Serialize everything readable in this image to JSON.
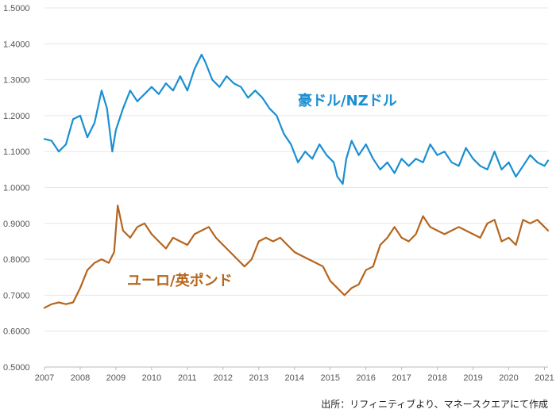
{
  "chart_data": {
    "type": "line",
    "title": "",
    "xlabel": "",
    "ylabel": "",
    "ylim": [
      0.5,
      1.5
    ],
    "xlim": [
      2007,
      2021.1
    ],
    "grid": "horizontal",
    "y_ticks": [
      "0.5000",
      "0.6000",
      "0.7000",
      "0.8000",
      "0.9000",
      "1.0000",
      "1.1000",
      "1.2000",
      "1.3000",
      "1.4000",
      "1.5000"
    ],
    "x_ticks": [
      "2007",
      "2008",
      "2009",
      "2010",
      "2011",
      "2012",
      "2013",
      "2014",
      "2015",
      "2016",
      "2017",
      "2018",
      "2019",
      "2020",
      "2021"
    ],
    "series": [
      {
        "name": "豪ドル/NZドル",
        "color": "#1a8fd1",
        "x": [
          2007.0,
          2007.2,
          2007.4,
          2007.6,
          2007.8,
          2008.0,
          2008.2,
          2008.4,
          2008.6,
          2008.75,
          2008.9,
          2009.0,
          2009.2,
          2009.4,
          2009.6,
          2009.8,
          2010.0,
          2010.2,
          2010.4,
          2010.6,
          2010.8,
          2011.0,
          2011.2,
          2011.4,
          2011.5,
          2011.7,
          2011.9,
          2012.1,
          2012.3,
          2012.5,
          2012.7,
          2012.9,
          2013.1,
          2013.3,
          2013.5,
          2013.7,
          2013.9,
          2014.1,
          2014.3,
          2014.5,
          2014.7,
          2014.9,
          2015.1,
          2015.2,
          2015.35,
          2015.45,
          2015.6,
          2015.8,
          2016.0,
          2016.2,
          2016.4,
          2016.6,
          2016.8,
          2017.0,
          2017.2,
          2017.4,
          2017.6,
          2017.8,
          2018.0,
          2018.2,
          2018.4,
          2018.6,
          2018.8,
          2019.0,
          2019.2,
          2019.4,
          2019.6,
          2019.8,
          2020.0,
          2020.2,
          2020.4,
          2020.6,
          2020.8,
          2021.0,
          2021.1
        ],
        "values": [
          1.135,
          1.13,
          1.1,
          1.12,
          1.19,
          1.2,
          1.14,
          1.18,
          1.27,
          1.22,
          1.1,
          1.16,
          1.22,
          1.27,
          1.24,
          1.26,
          1.28,
          1.26,
          1.29,
          1.27,
          1.31,
          1.27,
          1.33,
          1.37,
          1.35,
          1.3,
          1.28,
          1.31,
          1.29,
          1.28,
          1.25,
          1.27,
          1.25,
          1.22,
          1.2,
          1.15,
          1.12,
          1.07,
          1.1,
          1.08,
          1.12,
          1.09,
          1.07,
          1.03,
          1.01,
          1.08,
          1.13,
          1.09,
          1.12,
          1.08,
          1.05,
          1.07,
          1.04,
          1.08,
          1.06,
          1.08,
          1.07,
          1.12,
          1.09,
          1.1,
          1.07,
          1.06,
          1.11,
          1.08,
          1.06,
          1.05,
          1.1,
          1.05,
          1.07,
          1.03,
          1.06,
          1.09,
          1.07,
          1.06,
          1.075
        ]
      },
      {
        "name": "ユーロ/英ポンド",
        "color": "#b5651d",
        "x": [
          2007.0,
          2007.2,
          2007.4,
          2007.6,
          2007.8,
          2008.0,
          2008.2,
          2008.4,
          2008.6,
          2008.8,
          2008.95,
          2009.05,
          2009.2,
          2009.4,
          2009.6,
          2009.8,
          2010.0,
          2010.2,
          2010.4,
          2010.6,
          2010.8,
          2011.0,
          2011.2,
          2011.4,
          2011.6,
          2011.8,
          2012.0,
          2012.2,
          2012.4,
          2012.6,
          2012.8,
          2013.0,
          2013.2,
          2013.4,
          2013.6,
          2013.8,
          2014.0,
          2014.2,
          2014.4,
          2014.6,
          2014.8,
          2015.0,
          2015.2,
          2015.4,
          2015.6,
          2015.8,
          2016.0,
          2016.2,
          2016.4,
          2016.6,
          2016.8,
          2017.0,
          2017.2,
          2017.4,
          2017.6,
          2017.8,
          2018.0,
          2018.2,
          2018.4,
          2018.6,
          2018.8,
          2019.0,
          2019.2,
          2019.4,
          2019.6,
          2019.8,
          2020.0,
          2020.2,
          2020.4,
          2020.6,
          2020.8,
          2021.0,
          2021.1
        ],
        "values": [
          0.665,
          0.675,
          0.68,
          0.675,
          0.68,
          0.72,
          0.77,
          0.79,
          0.8,
          0.79,
          0.82,
          0.95,
          0.88,
          0.86,
          0.89,
          0.9,
          0.87,
          0.85,
          0.83,
          0.86,
          0.85,
          0.84,
          0.87,
          0.88,
          0.89,
          0.86,
          0.84,
          0.82,
          0.8,
          0.78,
          0.8,
          0.85,
          0.86,
          0.85,
          0.86,
          0.84,
          0.82,
          0.81,
          0.8,
          0.79,
          0.78,
          0.74,
          0.72,
          0.7,
          0.72,
          0.73,
          0.77,
          0.78,
          0.84,
          0.86,
          0.89,
          0.86,
          0.85,
          0.87,
          0.92,
          0.89,
          0.88,
          0.87,
          0.88,
          0.89,
          0.88,
          0.87,
          0.86,
          0.9,
          0.91,
          0.85,
          0.86,
          0.84,
          0.91,
          0.9,
          0.91,
          0.89,
          0.88
        ]
      }
    ],
    "annotations": [
      {
        "text": "豪ドル/NZドル",
        "series": 0
      },
      {
        "text": "ユーロ/英ポンド",
        "series": 1
      }
    ]
  },
  "source": "出所：リフィニティブより、マネースクエアにて作成"
}
